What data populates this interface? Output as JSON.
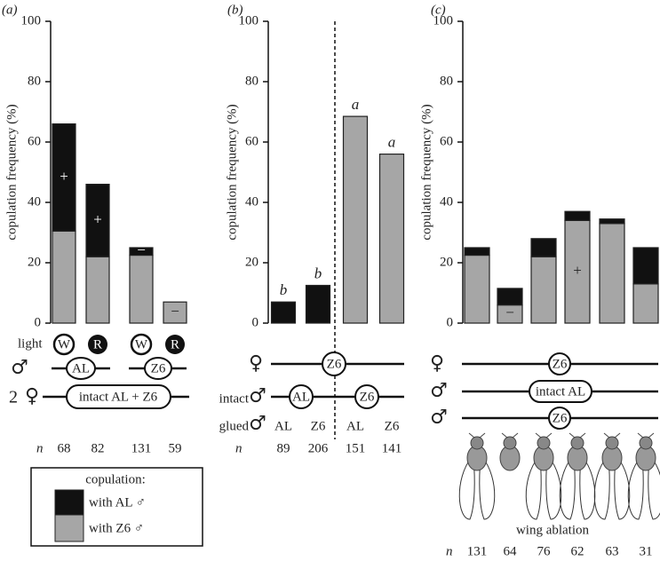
{
  "chart_data": [
    {
      "type": "stacked_bar",
      "panel": "(a)",
      "y_label": "copulation frequency (%)",
      "ylim": [
        0,
        100
      ],
      "yticks": [
        0,
        20,
        40,
        60,
        80,
        100
      ],
      "categories": [
        null,
        null,
        null,
        null
      ],
      "series": [
        {
          "name": "with AL ♂",
          "color": "#111111",
          "values": [
            35.5,
            24,
            2.5,
            0
          ],
          "annotations": [
            "+",
            "+",
            "−",
            null
          ]
        },
        {
          "name": "with Z6 ♂",
          "color": "#a6a6a6",
          "values": [
            30.5,
            22,
            22.5,
            7
          ],
          "annotations": [
            null,
            null,
            null,
            "−"
          ]
        }
      ],
      "legend_title": "copulation:",
      "rows": {
        "light": {
          "label": "light",
          "items": [
            "W",
            "R",
            "W",
            "R"
          ]
        },
        "male": {
          "label": "♂",
          "groups": [
            "AL",
            "Z6"
          ]
        },
        "females": {
          "count": "2",
          "label": "♀",
          "group": "intact AL + Z6"
        }
      },
      "n": {
        "label": "n",
        "values": [
          68,
          82,
          131,
          59
        ]
      }
    },
    {
      "type": "bar",
      "panel": "(b)",
      "y_label": "copulation frequency (%)",
      "ylim": [
        0,
        100
      ],
      "yticks": [
        0,
        20,
        40,
        60,
        80,
        100
      ],
      "categories": [
        "AL",
        "Z6",
        "AL",
        "Z6"
      ],
      "values": [
        7,
        12.5,
        68.5,
        56
      ],
      "colors": [
        "#111111",
        "#111111",
        "#a6a6a6",
        "#a6a6a6"
      ],
      "value_letters": [
        "b",
        "b",
        "a",
        "a"
      ],
      "rows": {
        "female": {
          "label": "♀",
          "group": "Z6"
        },
        "intact": {
          "label": "intact",
          "symbol": "♂",
          "groups": [
            "AL",
            "Z6"
          ]
        },
        "glued": {
          "label": "glued",
          "symbol": "♂"
        }
      },
      "n": {
        "label": "n",
        "values": [
          89,
          206,
          151,
          141
        ]
      }
    },
    {
      "type": "stacked_bar",
      "panel": "(c)",
      "y_label": "copulation frequency (%)",
      "ylim": [
        0,
        100
      ],
      "yticks": [
        0,
        20,
        40,
        60,
        80,
        100
      ],
      "categories": [
        null,
        null,
        null,
        null,
        null,
        null
      ],
      "series": [
        {
          "name": "with AL ♂",
          "color": "#111111",
          "values": [
            2.5,
            5.5,
            6,
            3,
            1.5,
            12
          ],
          "annotations": [
            null,
            null,
            null,
            null,
            null,
            null
          ]
        },
        {
          "name": "with Z6 ♂",
          "color": "#a6a6a6",
          "values": [
            22.5,
            6,
            22,
            34,
            33,
            13
          ],
          "annotations": [
            null,
            "−",
            null,
            "+",
            null,
            null
          ]
        }
      ],
      "rows": {
        "female": {
          "label": "♀",
          "group": "Z6"
        },
        "male1": {
          "label": "♂",
          "group": "intact AL"
        },
        "male2": {
          "label": "♂",
          "group": "Z6"
        }
      },
      "x_label": "wing ablation",
      "n": {
        "label": "n",
        "values": [
          131,
          64,
          76,
          62,
          63,
          31
        ]
      }
    }
  ]
}
